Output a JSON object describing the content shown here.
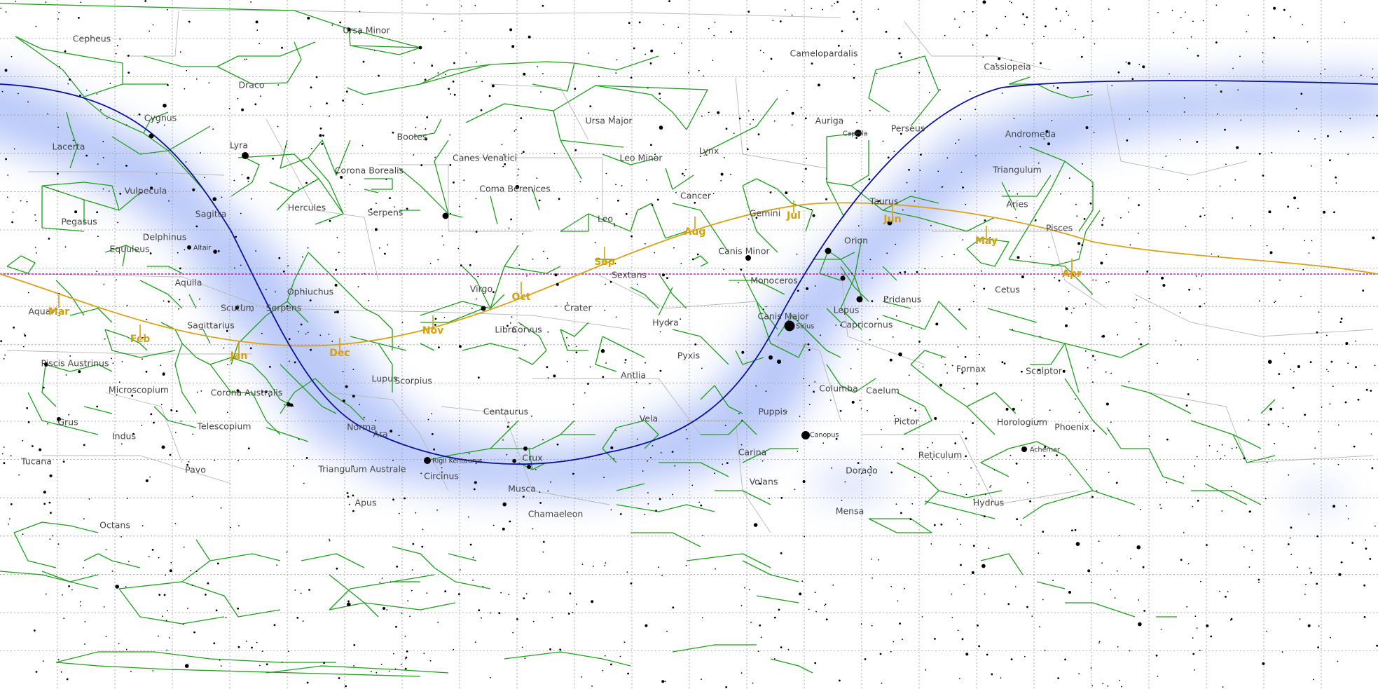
{
  "map": {
    "type": "equirectangular-sky-chart",
    "colors": {
      "background": "#ffffff",
      "milky_way": "#5b7ff0",
      "grid": "#9a9a9a",
      "boundaries": "#b8b8b8",
      "constellation_lines": "#1f9e1f",
      "stars": "#000000",
      "ecliptic": "#d9a21b",
      "galactic_equator": "#0a129c",
      "celestial_equator": "#c219c8",
      "month_labels": "#d4a00c"
    }
  },
  "constellations": [
    {
      "name": "Ursa Minor"
    },
    {
      "name": "Cepheus"
    },
    {
      "name": "Camelopardalis"
    },
    {
      "name": "Cassiopeia"
    },
    {
      "name": "Draco"
    },
    {
      "name": "Ursa Major"
    },
    {
      "name": "Cygnus"
    },
    {
      "name": "Auriga"
    },
    {
      "name": "Perseus"
    },
    {
      "name": "Andromeda"
    },
    {
      "name": "Lacerta"
    },
    {
      "name": "Lyra"
    },
    {
      "name": "Bootes"
    },
    {
      "name": "Canes Venatici"
    },
    {
      "name": "Lynx"
    },
    {
      "name": "Leo Minor"
    },
    {
      "name": "Corona Borealis"
    },
    {
      "name": "Triangulum"
    },
    {
      "name": "Vulpecula"
    },
    {
      "name": "Coma Berenices"
    },
    {
      "name": "Cancer"
    },
    {
      "name": "Taurus"
    },
    {
      "name": "Aries"
    },
    {
      "name": "Hercules"
    },
    {
      "name": "Sagitta"
    },
    {
      "name": "Serpens"
    },
    {
      "name": "Gemini"
    },
    {
      "name": "Pegasus"
    },
    {
      "name": "Leo"
    },
    {
      "name": "Pisces"
    },
    {
      "name": "Delphinus"
    },
    {
      "name": "Orion"
    },
    {
      "name": "Equuleus"
    },
    {
      "name": "Canis Minor"
    },
    {
      "name": "Sextans"
    },
    {
      "name": "Aquila"
    },
    {
      "name": "Monoceros"
    },
    {
      "name": "Ophiuchus"
    },
    {
      "name": "Virgo"
    },
    {
      "name": "Cetus"
    },
    {
      "name": "Eridanus"
    },
    {
      "name": "Aquar"
    },
    {
      "name": "Scutum"
    },
    {
      "name": "Serpens"
    },
    {
      "name": "Crater"
    },
    {
      "name": "Lepus"
    },
    {
      "name": "Canis Major"
    },
    {
      "name": "Hydra"
    },
    {
      "name": "Sagittarius"
    },
    {
      "name": "Capricornus"
    },
    {
      "name": "Libra"
    },
    {
      "name": "Corvus"
    },
    {
      "name": "Piscis Austrinus"
    },
    {
      "name": "Pyxis"
    },
    {
      "name": "Fornax"
    },
    {
      "name": "Sculptor"
    },
    {
      "name": "Scorpius"
    },
    {
      "name": "Lupus"
    },
    {
      "name": "Antlia"
    },
    {
      "name": "Microscopium"
    },
    {
      "name": "Columba"
    },
    {
      "name": "Caelum"
    },
    {
      "name": "Corona Australis"
    },
    {
      "name": "Centaurus"
    },
    {
      "name": "Puppis"
    },
    {
      "name": "Grus"
    },
    {
      "name": "Vela"
    },
    {
      "name": "Pictor"
    },
    {
      "name": "Horologium"
    },
    {
      "name": "Telescopium"
    },
    {
      "name": "Norma"
    },
    {
      "name": "Phoenix"
    },
    {
      "name": "Indus"
    },
    {
      "name": "Ara"
    },
    {
      "name": "Carina"
    },
    {
      "name": "Reticulum"
    },
    {
      "name": "Tucana"
    },
    {
      "name": "Pavo"
    },
    {
      "name": "Triangulum Australe"
    },
    {
      "name": "Crux"
    },
    {
      "name": "Circinus"
    },
    {
      "name": "Dorado"
    },
    {
      "name": "Volans"
    },
    {
      "name": "Musca"
    },
    {
      "name": "Apus"
    },
    {
      "name": "Mensa"
    },
    {
      "name": "Hydrus"
    },
    {
      "name": "Chamaeleon"
    },
    {
      "name": "Octans"
    }
  ],
  "bright_stars": [
    {
      "name": "Capella"
    },
    {
      "name": "Altair"
    },
    {
      "name": "Sirius"
    },
    {
      "name": "Canopus"
    },
    {
      "name": "Rigil Kentaurus"
    },
    {
      "name": "Achernar"
    }
  ],
  "ecliptic_months": [
    {
      "label": "Mar"
    },
    {
      "label": "Feb"
    },
    {
      "label": "Jan"
    },
    {
      "label": "Dec"
    },
    {
      "label": "Nov"
    },
    {
      "label": "Oct"
    },
    {
      "label": "Sep"
    },
    {
      "label": "Aug"
    },
    {
      "label": "Jul"
    },
    {
      "label": "Jun"
    },
    {
      "label": "May"
    },
    {
      "label": "Apr"
    }
  ]
}
